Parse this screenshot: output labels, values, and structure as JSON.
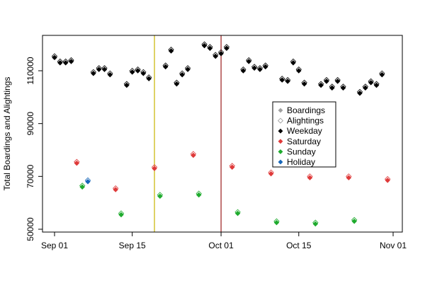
{
  "chart_data": {
    "type": "scatter",
    "title": "",
    "xlabel": "",
    "ylabel": "Total Boardings and Alightings",
    "x_ticks": [
      {
        "label": "Sep 01",
        "day": 1
      },
      {
        "label": "Sep 15",
        "day": 15
      },
      {
        "label": "Oct 01",
        "day": 31
      },
      {
        "label": "Oct 15",
        "day": 45
      },
      {
        "label": "Nov 01",
        "day": 62
      }
    ],
    "y_ticks": [
      50000,
      70000,
      90000,
      110000
    ],
    "x_range_days": [
      0,
      62.5
    ],
    "ylim": [
      49000,
      121500
    ],
    "grid": false,
    "legend_position": "right",
    "vlines": [
      {
        "day": 19,
        "color": "#c8b400"
      },
      {
        "day": 31,
        "color": "#9b1c1c"
      }
    ],
    "legend": [
      {
        "label": "Boardings",
        "kind": "filled",
        "color": "#a0a0a0"
      },
      {
        "label": "Alightings",
        "kind": "hollow",
        "color": "#a0a0a0"
      },
      {
        "label": "Weekday",
        "kind": "filled",
        "color": "#000000"
      },
      {
        "label": "Saturday",
        "kind": "filled",
        "color": "#df3a3a"
      },
      {
        "label": "Sunday",
        "kind": "filled",
        "color": "#1fab2e"
      },
      {
        "label": "Holiday",
        "kind": "filled",
        "color": "#1565b8"
      }
    ],
    "category_colors": {
      "Weekday": "#000000",
      "Saturday": "#df3a3a",
      "Sunday": "#1fab2e",
      "Holiday": "#1565b8"
    },
    "points": [
      {
        "day": 1,
        "date": "Sep 01",
        "category": "Weekday",
        "boardings": 115000,
        "alightings": 115500
      },
      {
        "day": 2,
        "date": "Sep 02",
        "category": "Weekday",
        "boardings": 113000,
        "alightings": 113500
      },
      {
        "day": 3,
        "date": "Sep 03",
        "category": "Weekday",
        "boardings": 113000,
        "alightings": 113500
      },
      {
        "day": 4,
        "date": "Sep 04",
        "category": "Weekday",
        "boardings": 113500,
        "alightings": 114000
      },
      {
        "day": 5,
        "date": "Sep 05",
        "category": "Saturday",
        "boardings": 75000,
        "alightings": 75500
      },
      {
        "day": 6,
        "date": "Sep 06",
        "category": "Sunday",
        "boardings": 66000,
        "alightings": 66500
      },
      {
        "day": 7,
        "date": "Sep 07",
        "category": "Holiday",
        "boardings": 68000,
        "alightings": 68500
      },
      {
        "day": 8,
        "date": "Sep 08",
        "category": "Weekday",
        "boardings": 109000,
        "alightings": 109500
      },
      {
        "day": 9,
        "date": "Sep 09",
        "category": "Weekday",
        "boardings": 110500,
        "alightings": 111000
      },
      {
        "day": 10,
        "date": "Sep 10",
        "category": "Weekday",
        "boardings": 110500,
        "alightings": 111000
      },
      {
        "day": 11,
        "date": "Sep 11",
        "category": "Weekday",
        "boardings": 108500,
        "alightings": 109000
      },
      {
        "day": 12,
        "date": "Sep 12",
        "category": "Saturday",
        "boardings": 65000,
        "alightings": 65500
      },
      {
        "day": 13,
        "date": "Sep 13",
        "category": "Sunday",
        "boardings": 55500,
        "alightings": 56000
      },
      {
        "day": 14,
        "date": "Sep 14",
        "category": "Weekday",
        "boardings": 104500,
        "alightings": 105000
      },
      {
        "day": 15,
        "date": "Sep 15",
        "category": "Weekday",
        "boardings": 109500,
        "alightings": 110000
      },
      {
        "day": 16,
        "date": "Sep 16",
        "category": "Weekday",
        "boardings": 110000,
        "alightings": 110500
      },
      {
        "day": 17,
        "date": "Sep 17",
        "category": "Weekday",
        "boardings": 109000,
        "alightings": 109500
      },
      {
        "day": 18,
        "date": "Sep 18",
        "category": "Weekday",
        "boardings": 107000,
        "alightings": 107500
      },
      {
        "day": 19,
        "date": "Sep 19",
        "category": "Saturday",
        "boardings": 73000,
        "alightings": 73500
      },
      {
        "day": 20,
        "date": "Sep 20",
        "category": "Sunday",
        "boardings": 62500,
        "alightings": 63000
      },
      {
        "day": 21,
        "date": "Sep 21",
        "category": "Weekday",
        "boardings": 111500,
        "alightings": 112000
      },
      {
        "day": 22,
        "date": "Sep 22",
        "category": "Weekday",
        "boardings": 117500,
        "alightings": 118000
      },
      {
        "day": 23,
        "date": "Sep 23",
        "category": "Weekday",
        "boardings": 105000,
        "alightings": 105500
      },
      {
        "day": 24,
        "date": "Sep 24",
        "category": "Weekday",
        "boardings": 108500,
        "alightings": 109000
      },
      {
        "day": 25,
        "date": "Sep 25",
        "category": "Weekday",
        "boardings": 110500,
        "alightings": 111000
      },
      {
        "day": 26,
        "date": "Sep 26",
        "category": "Saturday",
        "boardings": 78000,
        "alightings": 78500
      },
      {
        "day": 27,
        "date": "Sep 27",
        "category": "Sunday",
        "boardings": 63000,
        "alightings": 63500
      },
      {
        "day": 28,
        "date": "Sep 28",
        "category": "Weekday",
        "boardings": 119500,
        "alightings": 120000
      },
      {
        "day": 29,
        "date": "Sep 29",
        "category": "Weekday",
        "boardings": 118500,
        "alightings": 119000
      },
      {
        "day": 30,
        "date": "Sep 30",
        "category": "Weekday",
        "boardings": 115500,
        "alightings": 116000
      },
      {
        "day": 31,
        "date": "Oct 01",
        "category": "Weekday",
        "boardings": 116500,
        "alightings": 117000
      },
      {
        "day": 32,
        "date": "Oct 02",
        "category": "Weekday",
        "boardings": 118500,
        "alightings": 119000
      },
      {
        "day": 33,
        "date": "Oct 03",
        "category": "Saturday",
        "boardings": 73500,
        "alightings": 74000
      },
      {
        "day": 34,
        "date": "Oct 04",
        "category": "Sunday",
        "boardings": 56000,
        "alightings": 56500
      },
      {
        "day": 35,
        "date": "Oct 05",
        "category": "Weekday",
        "boardings": 110000,
        "alightings": 110500
      },
      {
        "day": 36,
        "date": "Oct 06",
        "category": "Weekday",
        "boardings": 113500,
        "alightings": 114000
      },
      {
        "day": 37,
        "date": "Oct 07",
        "category": "Weekday",
        "boardings": 111000,
        "alightings": 111500
      },
      {
        "day": 38,
        "date": "Oct 08",
        "category": "Weekday",
        "boardings": 110500,
        "alightings": 111000
      },
      {
        "day": 39,
        "date": "Oct 09",
        "category": "Weekday",
        "boardings": 111500,
        "alightings": 112000
      },
      {
        "day": 40,
        "date": "Oct 10",
        "category": "Saturday",
        "boardings": 71000,
        "alightings": 71500
      },
      {
        "day": 41,
        "date": "Oct 11",
        "category": "Sunday",
        "boardings": 52500,
        "alightings": 53000
      },
      {
        "day": 42,
        "date": "Oct 12",
        "category": "Weekday",
        "boardings": 106500,
        "alightings": 107000
      },
      {
        "day": 43,
        "date": "Oct 13",
        "category": "Weekday",
        "boardings": 106000,
        "alightings": 106500
      },
      {
        "day": 44,
        "date": "Oct 14",
        "category": "Weekday",
        "boardings": 113000,
        "alightings": 113500
      },
      {
        "day": 45,
        "date": "Oct 15",
        "category": "Weekday",
        "boardings": 110000,
        "alightings": 110500
      },
      {
        "day": 46,
        "date": "Oct 16",
        "category": "Weekday",
        "boardings": 105000,
        "alightings": 105500
      },
      {
        "day": 47,
        "date": "Oct 17",
        "category": "Saturday",
        "boardings": 69500,
        "alightings": 70000
      },
      {
        "day": 48,
        "date": "Oct 18",
        "category": "Sunday",
        "boardings": 52000,
        "alightings": 52500
      },
      {
        "day": 49,
        "date": "Oct 19",
        "category": "Weekday",
        "boardings": 104500,
        "alightings": 105000
      },
      {
        "day": 50,
        "date": "Oct 20",
        "category": "Weekday",
        "boardings": 106000,
        "alightings": 106500
      },
      {
        "day": 51,
        "date": "Oct 21",
        "category": "Weekday",
        "boardings": 103500,
        "alightings": 104000
      },
      {
        "day": 52,
        "date": "Oct 22",
        "category": "Weekday",
        "boardings": 106000,
        "alightings": 106500
      },
      {
        "day": 53,
        "date": "Oct 23",
        "category": "Weekday",
        "boardings": 103500,
        "alightings": 104000
      },
      {
        "day": 54,
        "date": "Oct 24",
        "category": "Saturday",
        "boardings": 69500,
        "alightings": 70000
      },
      {
        "day": 55,
        "date": "Oct 25",
        "category": "Sunday",
        "boardings": 53000,
        "alightings": 53500
      },
      {
        "day": 56,
        "date": "Oct 26",
        "category": "Weekday",
        "boardings": 101500,
        "alightings": 102000
      },
      {
        "day": 57,
        "date": "Oct 27",
        "category": "Weekday",
        "boardings": 103500,
        "alightings": 104000
      },
      {
        "day": 58,
        "date": "Oct 28",
        "category": "Weekday",
        "boardings": 105500,
        "alightings": 106000
      },
      {
        "day": 59,
        "date": "Oct 29",
        "category": "Weekday",
        "boardings": 104500,
        "alightings": 105000
      },
      {
        "day": 60,
        "date": "Oct 30",
        "category": "Weekday",
        "boardings": 108500,
        "alightings": 109000
      },
      {
        "day": 61,
        "date": "Oct 31",
        "category": "Saturday",
        "boardings": 68500,
        "alightings": 69000
      }
    ]
  }
}
